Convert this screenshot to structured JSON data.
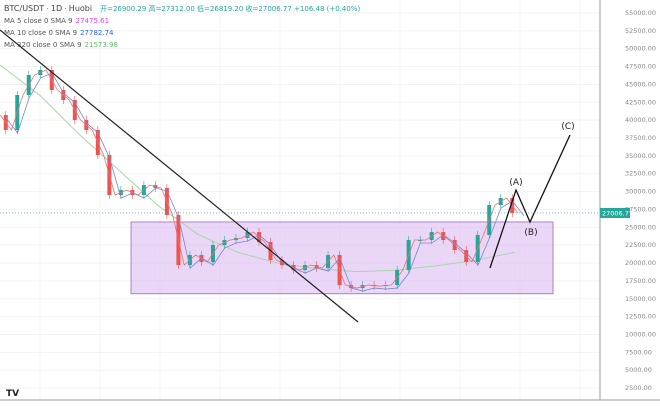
{
  "header": {
    "symbol": "BTC/USDT",
    "interval": "1D",
    "exchange": "Huobi",
    "ohlc": "开=26900.29 高=27312.00 低=26819.20 收=27006.77 +106.48 (+0.40%)"
  },
  "indicators": [
    {
      "label": "MA 5 close 0 SMA 9",
      "value": "27475.61",
      "color": "#e040fb"
    },
    {
      "label": "MA 10 close 0 SMA 9",
      "value": "27782.74",
      "color": "#2962ff"
    },
    {
      "label": "MA 320 close 0 SMA 9",
      "value": "21573.98",
      "color": "#66bb6a"
    }
  ],
  "chart_data": {
    "type": "candlestick",
    "ylim": [
      0,
      57500
    ],
    "yticks": [
      "55000.00",
      "52500.00",
      "50000.00",
      "47500.00",
      "45000.00",
      "42500.00",
      "40000.00",
      "37500.00",
      "35000.00",
      "32500.00",
      "30000.00",
      "27500.00",
      "25000.00",
      "22500.00",
      "20000.00",
      "17500.00",
      "15000.00",
      "12500.00",
      "10000.00",
      "7500.00",
      "5000.00",
      "2500.00"
    ],
    "last_price": "27006.77",
    "closes": [
      40720,
      38620,
      43520,
      46320,
      47020,
      44220,
      42820,
      40020,
      38620,
      35120,
      29520,
      30220,
      29520,
      30920,
      30500,
      26720,
      19720,
      21120,
      20140,
      22520,
      23220,
      23500,
      24340,
      22940,
      20420,
      19720,
      19020,
      19720,
      19300,
      21120,
      16920,
      16500,
      16920,
      16780,
      16920,
      19020,
      23220,
      23220,
      24340,
      23220,
      21820,
      20140,
      23920,
      28120,
      29100,
      27006
    ],
    "ma320": [
      47720,
      43500,
      38000,
      33000,
      28000,
      24000,
      21500,
      20000,
      19200,
      18800,
      19000,
      19600,
      20400,
      21500
    ],
    "range_box": {
      "top": 25750,
      "bottom": 15700,
      "color": "#d8b4f0"
    },
    "wave_labels": [
      "(A)",
      "(B)",
      "(C)"
    ],
    "colors": {
      "up": "#26a69a",
      "down": "#ef5350",
      "trendline": "#222222"
    }
  },
  "footer": {
    "logo": "TV"
  }
}
